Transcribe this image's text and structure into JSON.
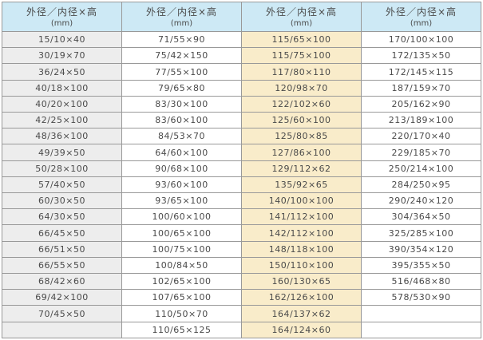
{
  "colors": {
    "header_bg": "#cde9f5",
    "col1_bg": "#ededed",
    "col3_bg": "#f9ecca",
    "border": "#999999",
    "border_outer": "#8c8c8c",
    "text": "#4a4a4a",
    "page_bg": "#ffffff"
  },
  "table": {
    "header": {
      "title": "外径／内径×高",
      "unit": "(mm)"
    },
    "columns": [
      {
        "rows": [
          "15/10×40",
          "30/19×70",
          "36/24×50",
          "40/18×100",
          "40/20×100",
          "42/25×100",
          "48/36×100",
          "49/39×50",
          "50/28×100",
          "57/40×50",
          "60/30×50",
          "64/30×50",
          "66/45×50",
          "66/51×50",
          "66/55×50",
          "68/42×60",
          "69/42×100",
          "70/45×50",
          ""
        ]
      },
      {
        "rows": [
          "71/55×90",
          "75/42×150",
          "77/55×100",
          "79/65×80",
          "83/30×100",
          "83/60×100",
          "84/53×70",
          "64/60×100",
          "90/68×100",
          "93/60×100",
          "93/65×100",
          "100/60×100",
          "100/65×100",
          "100/75×100",
          "100/84×50",
          "102/65×100",
          "107/65×100",
          "110/50×70",
          "110/65×125"
        ]
      },
      {
        "rows": [
          "115/65×100",
          "115/75×100",
          "117/80×110",
          "120/98×70",
          "122/102×60",
          "125/60×100",
          "125/80×85",
          "127/86×100",
          "129/112×62",
          "135/92×65",
          "140/100×100",
          "141/112×100",
          "142/112×100",
          "148/118×100",
          "150/110×100",
          "160/130×65",
          "162/126×100",
          "164/137×62",
          "164/124×60"
        ]
      },
      {
        "rows": [
          "170/100×100",
          "172/135×50",
          "172/145×115",
          "187/159×70",
          "205/162×90",
          "213/189×100",
          "220/170×40",
          "229/185×70",
          "250/214×100",
          "284/250×95",
          "290/240×120",
          "304/364×50",
          "325/285×100",
          "390/354×120",
          "395/355×50",
          "516/468×80",
          "578/530×90",
          "",
          ""
        ]
      }
    ]
  }
}
